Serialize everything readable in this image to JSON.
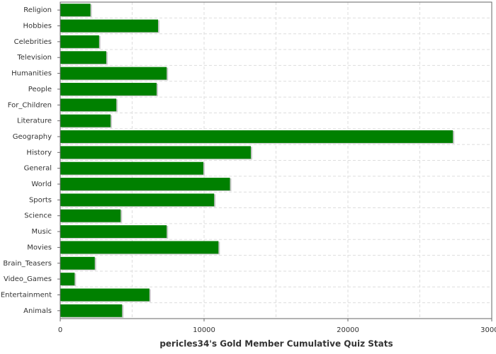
{
  "chart_data": {
    "type": "bar",
    "orientation": "horizontal",
    "x_label": "pericles34's Gold Member Cumulative Quiz Stats",
    "categories": [
      "Religion",
      "Hobbies",
      "Celebrities",
      "Television",
      "Humanities",
      "People",
      "For_Children",
      "Literature",
      "Geography",
      "History",
      "General",
      "World",
      "Sports",
      "Science",
      "Music",
      "Movies",
      "Brain_Teasers",
      "Video_Games",
      "Entertainment",
      "Animals"
    ],
    "values": [
      2100,
      6800,
      2700,
      3200,
      7400,
      6700,
      3900,
      3500,
      27300,
      13250,
      9950,
      11800,
      10700,
      4200,
      7400,
      11000,
      2400,
      1000,
      6200,
      4300
    ],
    "color": "#008000",
    "xlim": [
      0,
      30000
    ],
    "xticks": [
      0,
      10000,
      20000,
      30000
    ],
    "minor_xticks": [
      5000,
      15000,
      25000
    ],
    "grid": true
  }
}
